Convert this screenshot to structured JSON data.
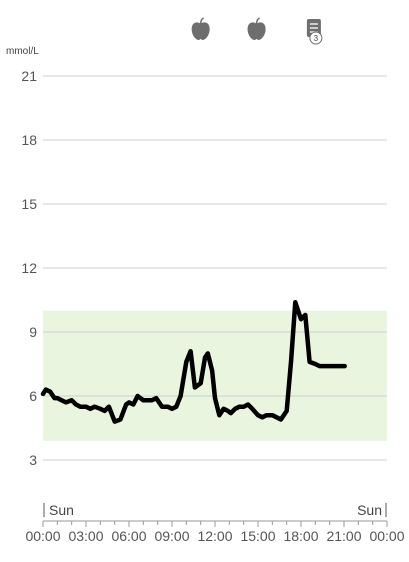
{
  "chart_data": {
    "type": "line",
    "unit_label": "mmol/L",
    "y_ticks": [
      3,
      6,
      9,
      12,
      15,
      18,
      21
    ],
    "ylim": [
      0,
      21
    ],
    "x_ticks": [
      "00:00",
      "03:00",
      "06:00",
      "09:00",
      "12:00",
      "15:00",
      "18:00",
      "21:00",
      "00:00"
    ],
    "xlim_hours": [
      0,
      24
    ],
    "day_labels": {
      "start": "Sun",
      "end": "Sun"
    },
    "target_range": {
      "low": 3.9,
      "high": 10.0,
      "color": "#eaf5e0"
    },
    "line_color": "#000000",
    "event_markers": [
      {
        "icon": "apple-icon",
        "hour": 11.0
      },
      {
        "icon": "apple-icon",
        "hour": 14.9
      },
      {
        "icon": "note-icon",
        "hour": 18.9,
        "badge": "3"
      }
    ],
    "series": [
      {
        "x_hours": [
          0.0,
          0.2,
          0.5,
          0.8,
          1.0,
          1.3,
          1.6,
          2.0,
          2.3,
          2.6,
          3.0,
          3.3,
          3.6,
          4.0,
          4.3,
          4.6,
          5.0,
          5.4,
          5.8,
          6.0,
          6.3,
          6.6,
          7.0,
          7.3,
          7.6,
          7.9,
          8.0,
          8.3,
          8.7,
          9.0,
          9.3,
          9.6,
          10.0,
          10.3,
          10.6,
          11.0,
          11.3,
          11.5,
          11.8,
          12.0,
          12.3,
          12.6,
          12.9,
          13.1,
          13.4,
          13.7,
          14.0,
          14.3,
          14.6,
          15.0,
          15.3,
          15.6,
          16.0,
          16.3,
          16.6,
          17.0,
          17.3,
          17.6,
          18.0,
          18.3,
          18.6,
          19.0,
          19.3,
          19.6,
          20.0,
          20.2,
          20.4,
          20.55,
          20.7,
          20.85,
          21.0,
          21.05
        ],
        "values": [
          6.1,
          6.3,
          6.2,
          5.9,
          5.9,
          5.8,
          5.7,
          5.8,
          5.6,
          5.5,
          5.5,
          5.4,
          5.5,
          5.4,
          5.3,
          5.5,
          4.8,
          4.9,
          5.6,
          5.7,
          5.6,
          6.0,
          5.8,
          5.8,
          5.8,
          5.9,
          5.8,
          5.5,
          5.5,
          5.4,
          5.5,
          6.0,
          7.6,
          8.1,
          6.4,
          6.6,
          7.8,
          8.0,
          7.2,
          5.9,
          5.1,
          5.4,
          5.3,
          5.2,
          5.4,
          5.5,
          5.5,
          5.6,
          5.4,
          5.1,
          5.0,
          5.1,
          5.1,
          5.0,
          4.9,
          5.3,
          7.6,
          10.4,
          9.6,
          9.8,
          7.6,
          7.5,
          7.4,
          7.4,
          7.4,
          7.4,
          7.4,
          7.4,
          7.4,
          7.4,
          7.4,
          7.4
        ]
      }
    ]
  }
}
